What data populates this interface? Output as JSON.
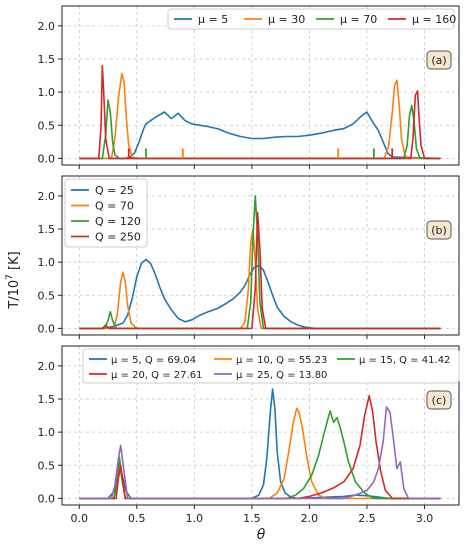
{
  "figure": {
    "ylabel": "T/10",
    "ylabel_exp": "7",
    "ylabel_unit": " [K]",
    "xlabel": "θ"
  },
  "colors": {
    "blue": "#1f77b4",
    "orange": "#ff7f0e",
    "green": "#2ca02c",
    "red": "#d62728",
    "purple": "#9467bd"
  },
  "chart_data": [
    {
      "type": "line",
      "panel_label": "(a)",
      "xlim": [
        -0.15,
        3.3
      ],
      "ylim": [
        -0.1,
        2.3
      ],
      "xticks": [
        "0.0",
        "0.5",
        "1.0",
        "1.5",
        "2.0",
        "2.5",
        "3.0"
      ],
      "yticks": [
        "0.0",
        "0.5",
        "1.0",
        "1.5",
        "2.0"
      ],
      "grid": true,
      "legend_position": "top-right",
      "legend_layout": "row",
      "series": [
        {
          "name": "μ = 5",
          "color": "blue",
          "x": [
            0.0,
            0.4,
            0.44,
            0.48,
            0.52,
            0.56,
            0.58,
            0.62,
            0.68,
            0.74,
            0.8,
            0.86,
            0.92,
            0.98,
            1.05,
            1.12,
            1.2,
            1.3,
            1.4,
            1.5,
            1.6,
            1.7,
            1.8,
            1.9,
            2.0,
            2.1,
            2.2,
            2.3,
            2.38,
            2.44,
            2.5,
            2.55,
            2.6,
            2.64,
            2.68,
            2.72,
            3.14
          ],
          "y": [
            0.0,
            0.0,
            0.02,
            0.08,
            0.25,
            0.45,
            0.52,
            0.57,
            0.64,
            0.7,
            0.6,
            0.68,
            0.57,
            0.52,
            0.5,
            0.48,
            0.45,
            0.38,
            0.33,
            0.3,
            0.3,
            0.32,
            0.33,
            0.33,
            0.35,
            0.38,
            0.42,
            0.45,
            0.52,
            0.62,
            0.7,
            0.55,
            0.42,
            0.25,
            0.08,
            0.02,
            0.0
          ]
        },
        {
          "name": "μ = 30",
          "color": "orange",
          "x": [
            0.0,
            0.28,
            0.31,
            0.34,
            0.37,
            0.39,
            0.41,
            0.43,
            0.46,
            0.5,
            2.65,
            2.69,
            2.72,
            2.74,
            2.76,
            2.78,
            2.8,
            2.83,
            2.86,
            3.14
          ],
          "y": [
            0.0,
            0.0,
            0.3,
            0.9,
            1.28,
            1.15,
            0.6,
            0.2,
            0.02,
            0.0,
            0.0,
            0.2,
            0.7,
            1.1,
            1.18,
            0.8,
            0.3,
            0.05,
            0.0,
            0.0
          ]
        },
        {
          "name": "μ = 70",
          "color": "green",
          "x": [
            0.0,
            0.2,
            0.23,
            0.25,
            0.27,
            0.29,
            0.31,
            0.35,
            2.82,
            2.85,
            2.87,
            2.89,
            2.91,
            2.93,
            2.96,
            3.14
          ],
          "y": [
            0.0,
            0.0,
            0.35,
            0.88,
            0.7,
            0.25,
            0.05,
            0.0,
            0.0,
            0.2,
            0.65,
            0.8,
            0.55,
            0.15,
            0.0,
            0.0
          ]
        },
        {
          "name": "μ = 160",
          "color": "red",
          "x": [
            0.0,
            0.17,
            0.19,
            0.2,
            0.21,
            0.23,
            0.26,
            2.88,
            2.9,
            2.92,
            2.94,
            2.95,
            2.97,
            3.0,
            3.14
          ],
          "y": [
            0.0,
            0.0,
            0.5,
            1.4,
            1.1,
            0.3,
            0.0,
            0.0,
            0.3,
            0.95,
            1.02,
            0.7,
            0.2,
            0.0,
            0.0
          ]
        }
      ],
      "markers": [
        {
          "color": "orange",
          "x": 0.9
        },
        {
          "color": "orange",
          "x": 2.25
        },
        {
          "color": "green",
          "x": 0.58
        },
        {
          "color": "green",
          "x": 2.56
        },
        {
          "color": "red",
          "x": 0.43
        },
        {
          "color": "red",
          "x": 2.72
        }
      ]
    },
    {
      "type": "line",
      "panel_label": "(b)",
      "xlim": [
        -0.15,
        3.3
      ],
      "ylim": [
        -0.1,
        2.3
      ],
      "xticks": [
        "0.0",
        "0.5",
        "1.0",
        "1.5",
        "2.0",
        "2.5",
        "3.0"
      ],
      "yticks": [
        "0.0",
        "0.5",
        "1.0",
        "1.5",
        "2.0"
      ],
      "grid": true,
      "legend_position": "top-left",
      "legend_layout": "column",
      "series": [
        {
          "name": "Q = 25",
          "color": "blue",
          "x": [
            0.0,
            0.2,
            0.3,
            0.38,
            0.42,
            0.46,
            0.5,
            0.54,
            0.58,
            0.62,
            0.66,
            0.7,
            0.74,
            0.8,
            0.86,
            0.92,
            0.98,
            1.05,
            1.12,
            1.2,
            1.28,
            1.34,
            1.4,
            1.44,
            1.48,
            1.52,
            1.56,
            1.6,
            1.64,
            1.68,
            1.72,
            1.78,
            1.84,
            1.9,
            1.96,
            2.05,
            2.2,
            3.14
          ],
          "y": [
            0.0,
            0.0,
            0.03,
            0.08,
            0.2,
            0.45,
            0.78,
            0.98,
            1.04,
            0.98,
            0.82,
            0.62,
            0.45,
            0.28,
            0.15,
            0.1,
            0.13,
            0.2,
            0.25,
            0.3,
            0.38,
            0.45,
            0.55,
            0.65,
            0.8,
            0.92,
            0.95,
            0.88,
            0.7,
            0.5,
            0.32,
            0.18,
            0.1,
            0.05,
            0.02,
            0.0,
            0.0,
            0.0
          ]
        },
        {
          "name": "Q = 70",
          "color": "orange",
          "x": [
            0.0,
            0.3,
            0.33,
            0.36,
            0.38,
            0.4,
            0.42,
            0.45,
            0.5,
            1.4,
            1.44,
            1.47,
            1.49,
            1.51,
            1.53,
            1.55,
            1.58,
            3.14
          ],
          "y": [
            0.0,
            0.0,
            0.2,
            0.7,
            0.85,
            0.7,
            0.35,
            0.08,
            0.0,
            0.0,
            0.1,
            0.6,
            1.3,
            1.5,
            1.0,
            0.3,
            0.0,
            0.0
          ]
        },
        {
          "name": "Q = 120",
          "color": "green",
          "x": [
            0.0,
            0.22,
            0.25,
            0.27,
            0.29,
            0.32,
            1.46,
            1.49,
            1.51,
            1.53,
            1.55,
            1.57,
            1.6,
            3.14
          ],
          "y": [
            0.0,
            0.0,
            0.12,
            0.25,
            0.12,
            0.0,
            0.0,
            0.4,
            1.4,
            2.0,
            1.4,
            0.4,
            0.0,
            0.0
          ]
        },
        {
          "name": "Q = 250",
          "color": "red",
          "x": [
            0.0,
            0.2,
            0.23,
            0.26,
            1.5,
            1.53,
            1.55,
            1.57,
            1.59,
            1.62,
            3.14
          ],
          "y": [
            0.0,
            0.0,
            0.05,
            0.0,
            0.0,
            0.6,
            1.75,
            1.2,
            0.3,
            0.0,
            0.0
          ]
        }
      ]
    },
    {
      "type": "line",
      "panel_label": "(c)",
      "xlim": [
        -0.15,
        3.3
      ],
      "ylim": [
        -0.1,
        2.3
      ],
      "xticks": [
        "0.0",
        "0.5",
        "1.0",
        "1.5",
        "2.0",
        "2.5",
        "3.0"
      ],
      "yticks": [
        "0.0",
        "0.5",
        "1.0",
        "1.5",
        "2.0"
      ],
      "grid": true,
      "legend_position": "top-center",
      "legend_layout": "grid-3",
      "series": [
        {
          "name": "μ = 5, Q = 69.04",
          "color": "blue",
          "x": [
            0.0,
            0.25,
            0.3,
            0.33,
            0.36,
            0.38,
            0.41,
            0.45,
            1.5,
            1.56,
            1.6,
            1.63,
            1.66,
            1.68,
            1.7,
            1.72,
            1.75,
            1.79,
            1.84,
            1.9,
            2.3,
            2.4,
            2.5,
            2.6,
            2.7,
            3.14
          ],
          "y": [
            0.0,
            0.0,
            0.1,
            0.3,
            0.45,
            0.3,
            0.1,
            0.0,
            0.0,
            0.05,
            0.2,
            0.6,
            1.3,
            1.65,
            1.35,
            0.7,
            0.25,
            0.08,
            0.02,
            0.0,
            0.03,
            0.05,
            0.04,
            0.02,
            0.0,
            0.0
          ]
        },
        {
          "name": "μ = 10, Q = 55.23",
          "color": "orange",
          "x": [
            0.0,
            0.3,
            0.33,
            0.35,
            0.37,
            0.4,
            1.65,
            1.72,
            1.78,
            1.82,
            1.86,
            1.89,
            1.91,
            1.94,
            1.98,
            2.02,
            2.08,
            2.15,
            3.14
          ],
          "y": [
            0.0,
            0.0,
            0.2,
            0.55,
            0.3,
            0.0,
            0.0,
            0.08,
            0.3,
            0.7,
            1.15,
            1.36,
            1.3,
            1.05,
            0.6,
            0.25,
            0.05,
            0.0,
            0.0
          ]
        },
        {
          "name": "μ = 15, Q = 41.42",
          "color": "green",
          "x": [
            0.0,
            0.3,
            0.33,
            0.35,
            0.37,
            0.4,
            1.8,
            1.88,
            1.95,
            2.02,
            2.08,
            2.13,
            2.18,
            2.21,
            2.24,
            2.27,
            2.3,
            2.34,
            2.4,
            2.48,
            2.56,
            3.14
          ],
          "y": [
            0.0,
            0.0,
            0.25,
            0.62,
            0.3,
            0.0,
            0.0,
            0.05,
            0.15,
            0.35,
            0.65,
            1.0,
            1.32,
            1.15,
            1.22,
            1.05,
            0.85,
            0.55,
            0.25,
            0.08,
            0.0,
            0.0
          ]
        },
        {
          "name": "μ = 20, Q = 27.61",
          "color": "red",
          "x": [
            0.0,
            0.32,
            0.34,
            0.36,
            0.38,
            0.4,
            1.9,
            2.0,
            2.1,
            2.2,
            2.3,
            2.38,
            2.44,
            2.48,
            2.52,
            2.55,
            2.58,
            2.62,
            2.66,
            2.72,
            3.14
          ],
          "y": [
            0.0,
            0.0,
            0.3,
            0.5,
            0.25,
            0.0,
            0.0,
            0.03,
            0.08,
            0.15,
            0.25,
            0.45,
            0.8,
            1.25,
            1.55,
            1.3,
            0.85,
            0.4,
            0.12,
            0.0,
            0.0
          ]
        },
        {
          "name": "μ = 25, Q = 13.80",
          "color": "purple",
          "x": [
            0.0,
            0.28,
            0.31,
            0.34,
            0.36,
            0.39,
            0.42,
            2.3,
            2.4,
            2.5,
            2.56,
            2.6,
            2.64,
            2.67,
            2.7,
            2.73,
            2.76,
            2.79,
            2.82,
            2.86,
            3.14
          ],
          "y": [
            0.0,
            0.0,
            0.2,
            0.6,
            0.8,
            0.4,
            0.0,
            0.0,
            0.05,
            0.12,
            0.25,
            0.45,
            0.85,
            1.38,
            1.3,
            0.9,
            0.45,
            0.55,
            0.15,
            0.0,
            0.0
          ]
        }
      ]
    }
  ]
}
